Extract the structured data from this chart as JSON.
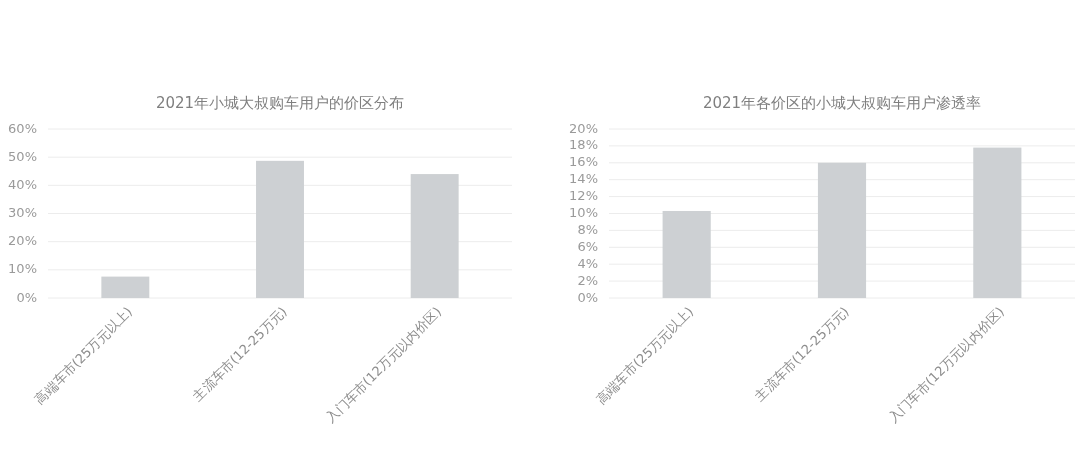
{
  "chart_data": [
    {
      "type": "bar",
      "title": "2021年小城大叔购车用户的价区分布",
      "categories": [
        "高端车市(25万元以上)",
        "主流车市(12-25万元)",
        "入门车市(12万元以内价区)"
      ],
      "values": [
        7.6,
        48.7,
        44.0
      ],
      "color": "#cdd0d3",
      "ylim": [
        0,
        60
      ],
      "yticks": [
        {
          "value": 0,
          "label": "0%"
        },
        {
          "value": 10,
          "label": "10%"
        },
        {
          "value": 20,
          "label": "20%"
        },
        {
          "value": 30,
          "label": "30%"
        },
        {
          "value": 40,
          "label": "40%"
        },
        {
          "value": 50,
          "label": "50%"
        },
        {
          "value": 60,
          "label": "60%"
        }
      ],
      "grid": "y"
    },
    {
      "type": "bar",
      "title": "2021年各价区的小城大叔购车用户渗透率",
      "categories": [
        "高端车市(25万元以上)",
        "主流车市(12-25万元)",
        "入门车市(12万元以内价区)"
      ],
      "values": [
        10.3,
        16.0,
        17.8
      ],
      "color": "#cdd0d3",
      "ylim": [
        0,
        20
      ],
      "yticks": [
        {
          "value": 0,
          "label": "0%"
        },
        {
          "value": 2,
          "label": "2%"
        },
        {
          "value": 4,
          "label": "4%"
        },
        {
          "value": 6,
          "label": "6%"
        },
        {
          "value": 8,
          "label": "8%"
        },
        {
          "value": 10,
          "label": "10%"
        },
        {
          "value": 12,
          "label": "12%"
        },
        {
          "value": 14,
          "label": "14%"
        },
        {
          "value": 16,
          "label": "16%"
        },
        {
          "value": 18,
          "label": "18%"
        },
        {
          "value": 20,
          "label": "20%"
        }
      ],
      "grid": "y"
    }
  ]
}
